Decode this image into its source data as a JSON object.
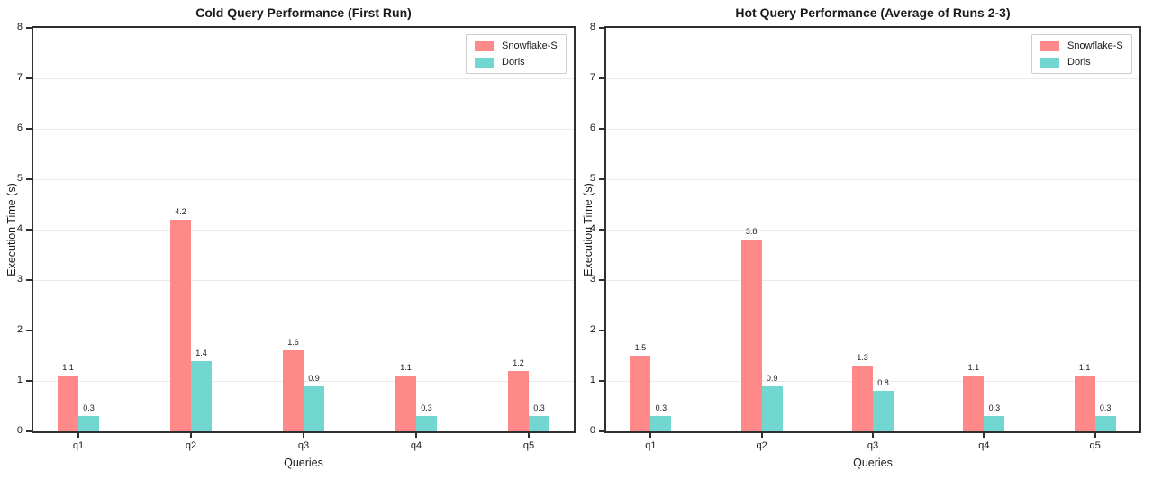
{
  "figure_background": "#ffffff",
  "accent_colors": {
    "snowflake_s": "#FF8989",
    "doris": "#71D7D0",
    "spine": "#2f2f2f",
    "gridline": "#eaeaea"
  },
  "chart_data": [
    {
      "type": "bar",
      "title": "Cold Query Performance (First Run)",
      "xlabel": "Queries",
      "ylabel": "Execution Time (s)",
      "ylim": [
        0,
        8
      ],
      "yticks": [
        0,
        1,
        2,
        3,
        4,
        5,
        6,
        7,
        8
      ],
      "grid": "horizontal",
      "legend_position": "top-right",
      "categories": [
        "q1",
        "q2",
        "q3",
        "q4",
        "q5"
      ],
      "series": [
        {
          "name": "Snowflake-S",
          "color": "#FF8989",
          "values": [
            1.1,
            4.2,
            1.6,
            1.1,
            1.2
          ]
        },
        {
          "name": "Doris",
          "color": "#71D7D0",
          "values": [
            0.3,
            1.4,
            0.9,
            0.3,
            0.3
          ]
        }
      ]
    },
    {
      "type": "bar",
      "title": "Hot Query Performance (Average of Runs 2-3)",
      "xlabel": "Queries",
      "ylabel": "Execution Time (s)",
      "ylim": [
        0,
        8
      ],
      "yticks": [
        0,
        1,
        2,
        3,
        4,
        5,
        6,
        7,
        8
      ],
      "grid": "horizontal",
      "legend_position": "top-right",
      "categories": [
        "q1",
        "q2",
        "q3",
        "q4",
        "q5"
      ],
      "series": [
        {
          "name": "Snowflake-S",
          "color": "#FF8989",
          "values": [
            1.5,
            3.8,
            1.3,
            1.1,
            1.1
          ]
        },
        {
          "name": "Doris",
          "color": "#71D7D0",
          "values": [
            0.3,
            0.9,
            0.8,
            0.3,
            0.3
          ]
        }
      ]
    }
  ]
}
